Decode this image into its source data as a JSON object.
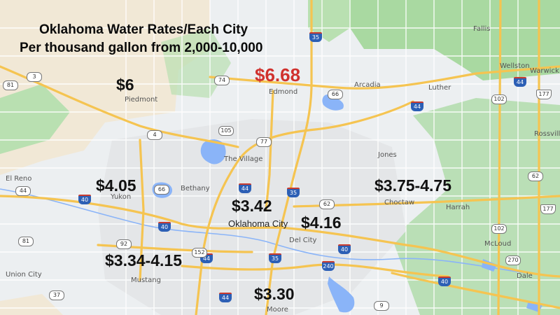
{
  "title": {
    "line1": "Oklahoma Water Rates/Each City",
    "line2": "Per thousand gallon from 2,000-10,000"
  },
  "rates": {
    "piedmont": "$6",
    "edmond": "$6.68",
    "yukon": "$4.05",
    "oklahoma_city": "$3.42",
    "del_city": "$4.16",
    "choctaw": "$3.75-4.75",
    "mustang": "$3.34-4.15",
    "moore": "$3.30"
  },
  "places": {
    "fallis": "Fallis",
    "wellston": "Wellston",
    "warwick": "Warwick",
    "arcadia": "Arcadia",
    "luther": "Luther",
    "edmond": "Edmond",
    "piedmont": "Piedmont",
    "the_village": "The Village",
    "jones": "Jones",
    "rossville": "Rossville",
    "el_reno": "El Reno",
    "yukon": "Yukon",
    "bethany": "Bethany",
    "choctaw": "Choctaw",
    "harrah": "Harrah",
    "oklahoma_city": "Oklahoma City",
    "del_city": "Del City",
    "mcloud": "McLoud",
    "union_city": "Union City",
    "mustang": "Mustang",
    "moore": "Moore",
    "dale": "Dale"
  },
  "shields": {
    "i35_north": "35",
    "i35_center": "35",
    "i35_south": "35",
    "i44_ne": "44",
    "i44_nw": "44",
    "i44_center": "44",
    "i44_sw": "44",
    "i44_south": "44",
    "i40_west": "40",
    "i40_center": "40",
    "i40_east": "40",
    "i40_far_east": "40",
    "i240": "240",
    "sh3": "3",
    "sh81_north": "81",
    "sh81_south": "81",
    "sh74": "74",
    "sh66_edmond": "66",
    "sh66_west": "66",
    "sh77": "77",
    "sh62": "62",
    "sh92": "92",
    "sh152": "152",
    "us102_north": "102",
    "us102_south": "102",
    "sh177_north": "177",
    "sh177_south": "177",
    "sh62_east": "62",
    "sh270": "270",
    "sh4": "4",
    "sh9": "9",
    "sh105": "105",
    "sh37": "37",
    "sh44_east": "44"
  },
  "colors": {
    "title_text": "#0a0a0a",
    "rate_text": "#111111",
    "highlight_rate": "#d0312d",
    "land": "#eceff1",
    "green": "#a9d9a1",
    "tan": "#f1e8d6",
    "highway": "#f5c451",
    "water": "#8ab4f8"
  }
}
